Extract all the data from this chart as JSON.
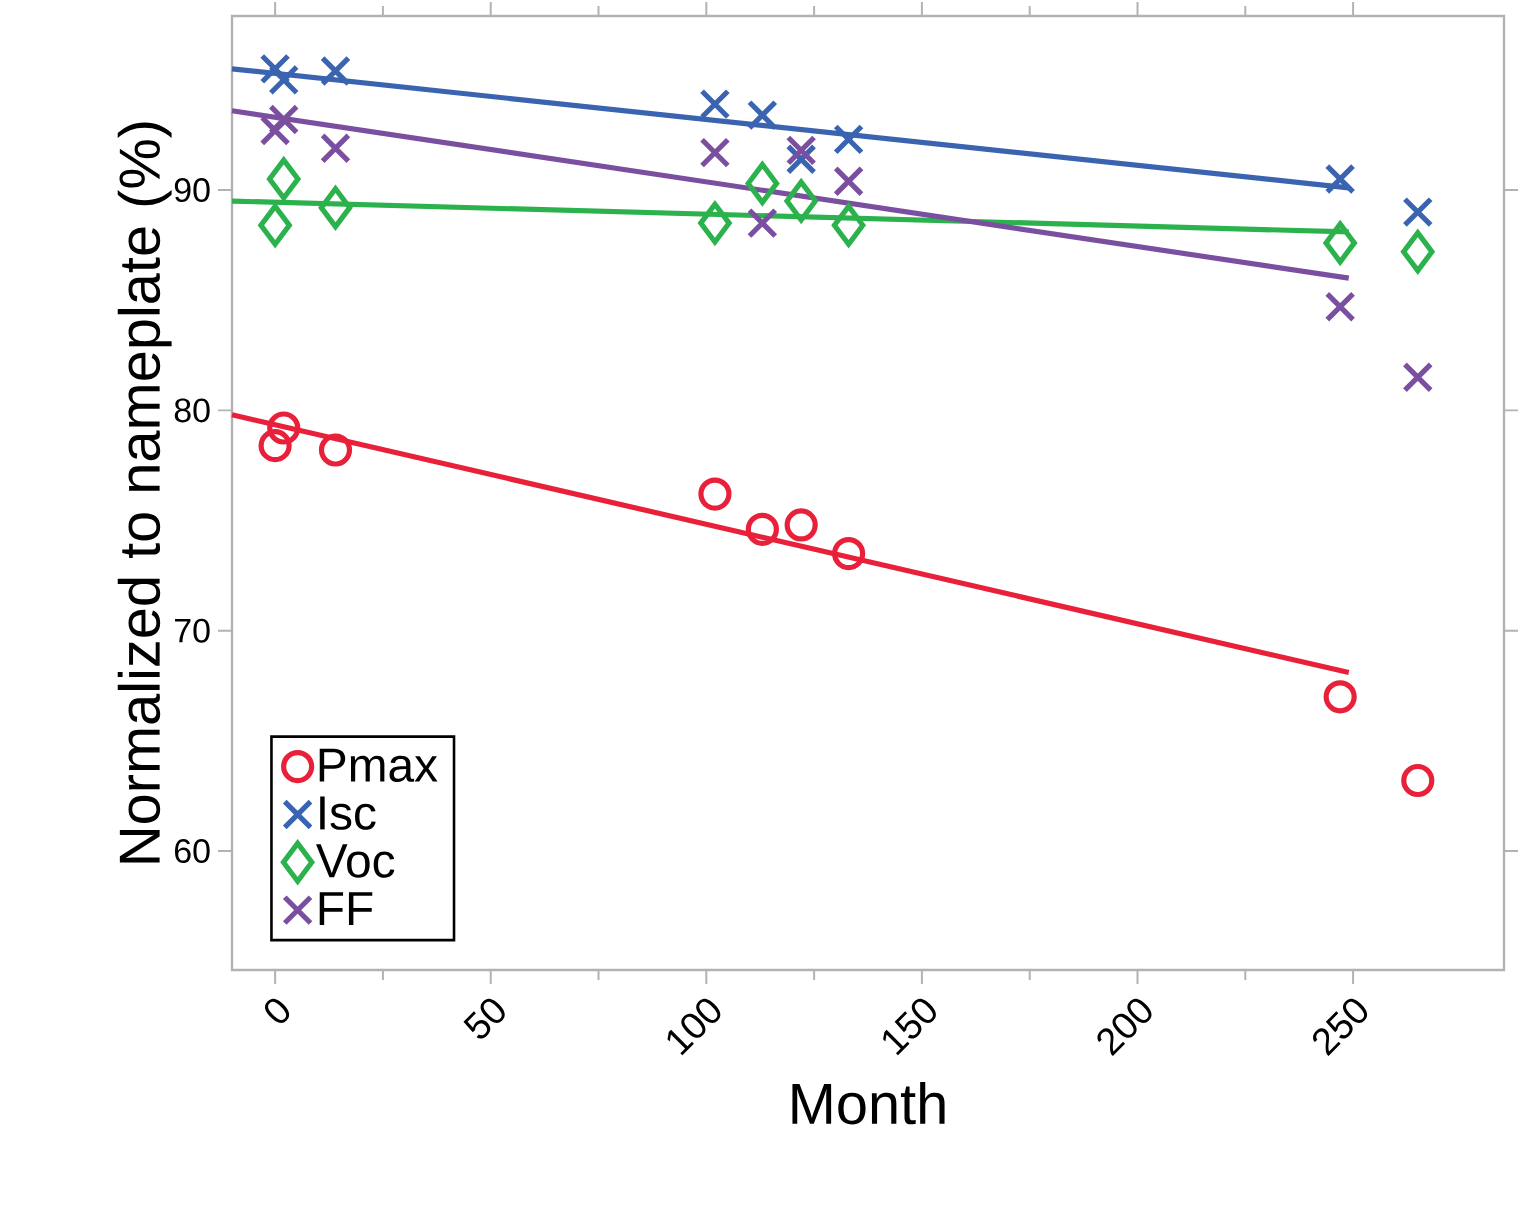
{
  "chart_data": {
    "type": "scatter",
    "xlabel": "Month",
    "ylabel": "Normalized to nameplate  (%)",
    "xlim": [
      -10,
      285
    ],
    "ylim": [
      54.6,
      97.9
    ],
    "xticks": [
      0,
      50,
      100,
      150,
      200,
      250
    ],
    "yticks": [
      60,
      70,
      80,
      90
    ],
    "grid": false,
    "legend": "bottom left",
    "series": [
      {
        "name": "Pmax",
        "type": "scatter",
        "marker": "circle",
        "color": "#e8203a",
        "x": [
          0,
          2,
          14,
          102,
          113,
          122,
          133,
          247,
          265
        ],
        "values": [
          78.4,
          79.2,
          78.2,
          76.2,
          74.6,
          74.8,
          73.5,
          67.0,
          63.2
        ]
      },
      {
        "name": "Isc",
        "type": "scatter",
        "marker": "cross",
        "color": "#3a64b0",
        "x": [
          0,
          2,
          14,
          102,
          113,
          122,
          133,
          247,
          265
        ],
        "values": [
          95.5,
          95.0,
          95.4,
          93.9,
          93.4,
          91.4,
          92.3,
          90.5,
          89.0
        ]
      },
      {
        "name": "Voc",
        "type": "scatter",
        "marker": "diamond",
        "color": "#2bb24c",
        "x": [
          0,
          2,
          14,
          102,
          113,
          122,
          133,
          247,
          265
        ],
        "values": [
          88.4,
          90.5,
          89.2,
          88.5,
          90.3,
          89.5,
          88.4,
          87.6,
          87.2
        ]
      },
      {
        "name": "FF",
        "type": "scatter",
        "marker": "cross",
        "color": "#7b4fa0",
        "x": [
          0,
          2,
          14,
          102,
          113,
          122,
          133,
          247,
          265
        ],
        "values": [
          92.7,
          93.2,
          91.9,
          91.7,
          88.5,
          91.8,
          90.4,
          84.7,
          81.5
        ]
      },
      {
        "type": "line",
        "color": "#e8203a",
        "x": [
          -10,
          249
        ],
        "values": [
          79.8,
          68.1
        ]
      },
      {
        "type": "line",
        "color": "#3a64b0",
        "x": [
          -10,
          249
        ],
        "values": [
          95.5,
          90.1
        ]
      },
      {
        "type": "line",
        "color": "#2bb24c",
        "x": [
          -10,
          249
        ],
        "values": [
          89.5,
          88.1
        ]
      },
      {
        "type": "line",
        "color": "#7b4fa0",
        "x": [
          -10,
          249
        ],
        "values": [
          93.6,
          86.0
        ]
      }
    ]
  }
}
